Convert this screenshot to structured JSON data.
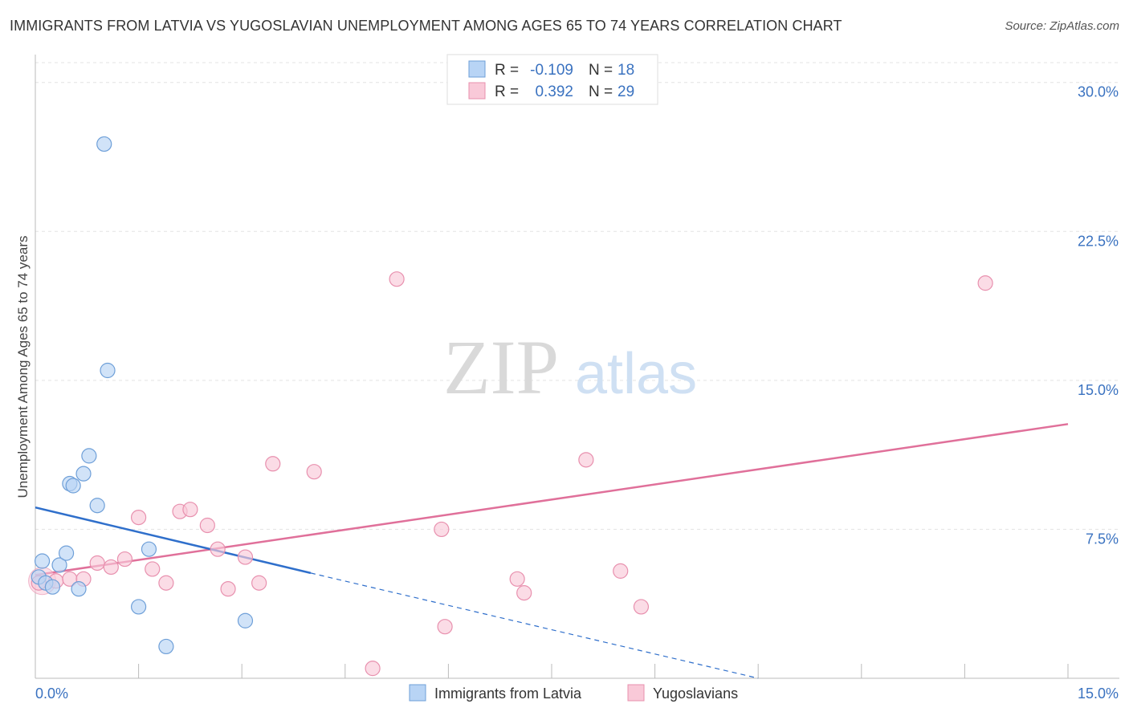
{
  "header": {
    "title": "IMMIGRANTS FROM LATVIA VS YUGOSLAVIAN UNEMPLOYMENT AMONG AGES 65 TO 74 YEARS CORRELATION CHART",
    "source": "Source: ZipAtlas.com"
  },
  "watermark": {
    "part1": "ZIP",
    "part2": "atlas"
  },
  "colors": {
    "series1_fill": "#b8d4f5",
    "series1_stroke": "#6e9fd8",
    "series1_line": "#2f6fcb",
    "series2_fill": "#f9c9d8",
    "series2_stroke": "#e890ae",
    "series2_line": "#e0709a",
    "grid": "#e3e3e3",
    "axis_text": "#3a72c0"
  },
  "chart_data": {
    "type": "scatter",
    "title": "IMMIGRANTS FROM LATVIA VS YUGOSLAVIAN UNEMPLOYMENT AMONG AGES 65 TO 74 YEARS CORRELATION CHART",
    "xlabel": "",
    "ylabel": "Unemployment Among Ages 65 to 74 years",
    "xlim": [
      0,
      15
    ],
    "ylim": [
      0,
      31
    ],
    "grid": true,
    "x_tick_labels": [
      "0.0%",
      "15.0%"
    ],
    "y_ticks": [
      {
        "value": 7.5,
        "label": "7.5%"
      },
      {
        "value": 15.0,
        "label": "15.0%"
      },
      {
        "value": 22.5,
        "label": "22.5%"
      },
      {
        "value": 30.0,
        "label": "30.0%"
      }
    ],
    "legend": {
      "position": "top-center",
      "rows": [
        {
          "r_label": "R =",
          "r_value": "-0.109",
          "n_label": "N =",
          "n_value": "18"
        },
        {
          "r_label": "R =",
          "r_value": "0.392",
          "n_label": "N =",
          "n_value": "29"
        }
      ]
    },
    "series": [
      {
        "name": "Immigrants from Latvia",
        "points": [
          [
            0.05,
            5.1
          ],
          [
            0.1,
            5.9
          ],
          [
            0.15,
            4.8
          ],
          [
            0.25,
            4.6
          ],
          [
            0.35,
            5.7
          ],
          [
            0.45,
            6.3
          ],
          [
            0.5,
            9.8
          ],
          [
            0.55,
            9.7
          ],
          [
            0.63,
            4.5
          ],
          [
            0.7,
            10.3
          ],
          [
            0.78,
            11.2
          ],
          [
            0.9,
            8.7
          ],
          [
            1.0,
            26.9
          ],
          [
            1.05,
            15.5
          ],
          [
            1.5,
            3.6
          ],
          [
            1.65,
            6.5
          ],
          [
            1.9,
            1.6
          ],
          [
            3.05,
            2.9
          ]
        ],
        "trend": {
          "x0": 0.0,
          "y0": 8.6,
          "x1": 4.0,
          "y1": 5.3,
          "dash_x_end": 10.5,
          "dash_y_end": 0.0
        }
      },
      {
        "name": "Yugoslavians",
        "points": [
          [
            0.05,
            4.8
          ],
          [
            0.3,
            4.9
          ],
          [
            0.5,
            5.0
          ],
          [
            0.7,
            5.0
          ],
          [
            0.9,
            5.8
          ],
          [
            1.1,
            5.6
          ],
          [
            1.3,
            6.0
          ],
          [
            1.5,
            8.1
          ],
          [
            1.7,
            5.5
          ],
          [
            1.9,
            4.8
          ],
          [
            2.1,
            8.4
          ],
          [
            2.25,
            8.5
          ],
          [
            2.5,
            7.7
          ],
          [
            2.65,
            6.5
          ],
          [
            2.8,
            4.5
          ],
          [
            3.05,
            6.1
          ],
          [
            3.25,
            4.8
          ],
          [
            3.45,
            10.8
          ],
          [
            4.05,
            10.4
          ],
          [
            4.9,
            0.5
          ],
          [
            5.25,
            20.1
          ],
          [
            5.9,
            7.5
          ],
          [
            5.95,
            2.6
          ],
          [
            7.0,
            5.0
          ],
          [
            7.1,
            4.3
          ],
          [
            8.0,
            11.0
          ],
          [
            8.5,
            5.4
          ],
          [
            8.8,
            3.6
          ],
          [
            13.8,
            19.9
          ]
        ],
        "trend": {
          "x0": 0.0,
          "y0": 5.2,
          "x1": 15.0,
          "y1": 12.8
        }
      }
    ]
  }
}
